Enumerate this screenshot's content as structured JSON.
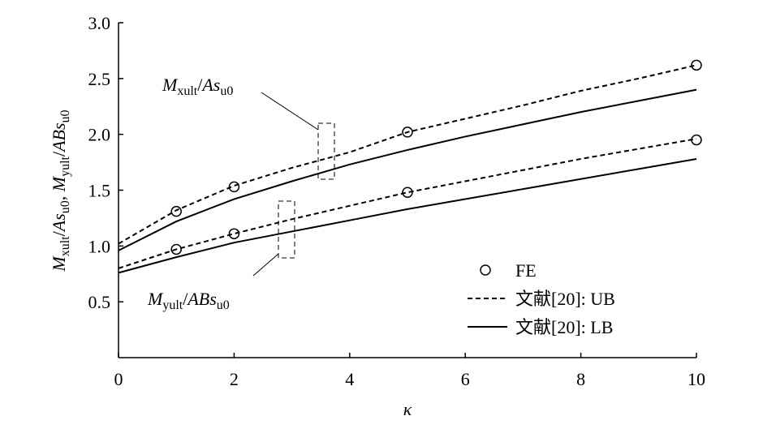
{
  "chart_data": {
    "type": "line",
    "xlabel": [
      {
        "t": "κ",
        "s": "i"
      }
    ],
    "ylabel": [
      {
        "t": "M",
        "s": "i"
      },
      {
        "t": "xult",
        "s": "sub"
      },
      {
        "t": "/",
        "s": "r"
      },
      {
        "t": "As",
        "s": "i"
      },
      {
        "t": "u0",
        "s": "sub"
      },
      {
        "t": ", ",
        "s": "r"
      },
      {
        "t": "M",
        "s": "i"
      },
      {
        "t": "yult",
        "s": "sub"
      },
      {
        "t": "/",
        "s": "r"
      },
      {
        "t": "ABs",
        "s": "i"
      },
      {
        "t": "u0",
        "s": "sub"
      }
    ],
    "annotations": [
      [
        {
          "t": "M",
          "s": "i"
        },
        {
          "t": "xult",
          "s": "sub"
        },
        {
          "t": "/",
          "s": "r"
        },
        {
          "t": "As",
          "s": "i"
        },
        {
          "t": "u0",
          "s": "sub"
        }
      ],
      [
        {
          "t": "M",
          "s": "i"
        },
        {
          "t": "yult",
          "s": "sub"
        },
        {
          "t": "/",
          "s": "r"
        },
        {
          "t": "ABs",
          "s": "i"
        },
        {
          "t": "u0",
          "s": "sub"
        }
      ]
    ],
    "xlim": [
      0,
      10
    ],
    "xticks": [
      0,
      2,
      4,
      6,
      8,
      10
    ],
    "ylim": [
      0,
      3.0
    ],
    "yticks": [
      0.5,
      {
        "value": 1.0,
        "label": "1.0"
      },
      1.5,
      {
        "value": 2.0,
        "label": "2.0"
      },
      2.5,
      {
        "value": 3.0,
        "label": "3.0"
      }
    ],
    "series": [
      {
        "name": "FE",
        "style": "marker",
        "color": "#000000",
        "x": [
          1,
          2,
          5,
          10
        ],
        "values": [
          [
            1.31,
            1.53,
            2.02,
            2.62
          ],
          [
            0.97,
            1.11,
            1.48,
            1.95
          ]
        ]
      },
      {
        "name": "文献[20]: UB",
        "style": "dashed",
        "color": "#000000",
        "x": [
          0,
          1,
          2,
          3,
          4,
          5,
          6,
          7,
          8,
          9,
          10
        ],
        "values": [
          [
            1.02,
            1.32,
            1.54,
            1.7,
            1.84,
            2.02,
            2.14,
            2.26,
            2.39,
            2.5,
            2.62
          ],
          [
            0.8,
            0.97,
            1.11,
            1.24,
            1.36,
            1.48,
            1.58,
            1.68,
            1.78,
            1.87,
            1.96
          ]
        ]
      },
      {
        "name": "文献[20]: LB",
        "style": "solid",
        "color": "#000000",
        "x": [
          0,
          1,
          2,
          3,
          4,
          5,
          6,
          7,
          8,
          9,
          10
        ],
        "values": [
          [
            0.96,
            1.22,
            1.42,
            1.58,
            1.73,
            1.86,
            1.98,
            2.09,
            2.2,
            2.3,
            2.4
          ],
          [
            0.76,
            0.9,
            1.03,
            1.13,
            1.23,
            1.33,
            1.42,
            1.51,
            1.6,
            1.69,
            1.78
          ]
        ]
      }
    ]
  }
}
